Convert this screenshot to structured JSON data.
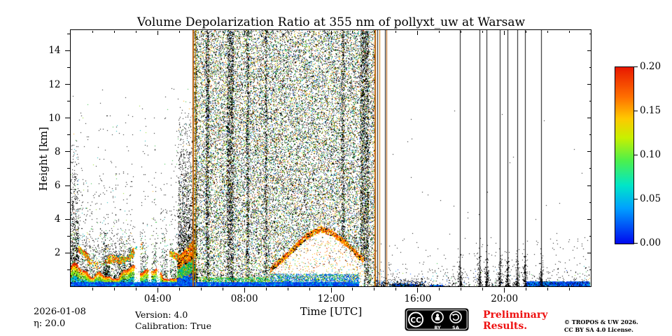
{
  "chart_data": {
    "type": "heatmap",
    "title": "Volume Depolarization Ratio at 355 nm of pollyxt_uw at Warsaw",
    "xlabel": "Time [UTC]",
    "ylabel": "Height [km]",
    "x_range_hours": [
      0,
      24
    ],
    "y_range_km": [
      0,
      15.2
    ],
    "x_ticks": [
      {
        "t": 4,
        "label": "04:00"
      },
      {
        "t": 8,
        "label": "08:00"
      },
      {
        "t": 12,
        "label": "12:00"
      },
      {
        "t": 16,
        "label": "16:00"
      },
      {
        "t": 20,
        "label": "20:00"
      }
    ],
    "x_minor_step_hours": 1,
    "y_ticks": [
      {
        "h": 2,
        "label": "2"
      },
      {
        "h": 4,
        "label": "4"
      },
      {
        "h": 6,
        "label": "6"
      },
      {
        "h": 8,
        "label": "8"
      },
      {
        "h": 10,
        "label": "10"
      },
      {
        "h": 12,
        "label": "12"
      },
      {
        "h": 14,
        "label": "14"
      }
    ],
    "y_minor_step_km": 1,
    "colorbar": {
      "min": 0.0,
      "max": 0.2,
      "label_values": [
        "0.20",
        "0.15",
        "0.10",
        "0.05",
        "0.00"
      ],
      "gradient_stops": [
        "#0008ee 0%",
        "#00a0ff 20%",
        "#00e6c8 33%",
        "#4cf04c 47%",
        "#c8f000 60%",
        "#ffc800 71%",
        "#ff7000 83%",
        "#e81800 100%"
      ]
    },
    "noise_seed": 1234567,
    "palettes": {
      "speckle": [
        [
          "#000000",
          0.5
        ],
        [
          "#1a9e1a",
          0.1
        ],
        [
          "#66cc22",
          0.07
        ],
        [
          "#00b0c0",
          0.09
        ],
        [
          "#ffaa00",
          0.08
        ],
        [
          "#ffe000",
          0.06
        ],
        [
          "#e03000",
          0.05
        ],
        [
          "#2255ee",
          0.05
        ]
      ],
      "warm": [
        [
          "#ff8800",
          0.3
        ],
        [
          "#dd3300",
          0.17
        ],
        [
          "#ffdd00",
          0.15
        ],
        [
          "#55cc33",
          0.13
        ],
        [
          "#00aacc",
          0.1
        ],
        [
          "#000000",
          0.15
        ]
      ],
      "rim": [
        [
          "#ff8800",
          0.4
        ],
        [
          "#ee3300",
          0.22
        ],
        [
          "#ffdd00",
          0.18
        ],
        [
          "#000000",
          0.2
        ]
      ],
      "blues": [
        [
          "#0033dd",
          0.45
        ],
        [
          "#0055ff",
          0.3
        ],
        [
          "#0090ee",
          0.15
        ],
        [
          "#00bbdd",
          0.1
        ]
      ],
      "greens": [
        [
          "#22bb33",
          0.4
        ],
        [
          "#00b0b0",
          0.3
        ],
        [
          "#88dd11",
          0.2
        ],
        [
          "#ffaa00",
          0.1
        ]
      ],
      "filament": [
        [
          "#ffaa00",
          0.28
        ],
        [
          "#ff6600",
          0.2
        ],
        [
          "#dd2200",
          0.13
        ],
        [
          "#ffee00",
          0.13
        ],
        [
          "#55cc22",
          0.14
        ],
        [
          "#00bbcc",
          0.12
        ]
      ]
    },
    "features": {
      "gaps": [
        [
          2.9,
          3.2
        ],
        [
          3.55,
          3.72
        ],
        [
          3.95,
          4.12
        ],
        [
          4.45,
          4.56
        ]
      ],
      "left_noise": {
        "t0": 0,
        "t1": 5.68,
        "count": 2600,
        "hscale": 3.0,
        "hmax": 11.8
      },
      "plumes": [
        {
          "t0": 0.0,
          "t1": 0.35,
          "hmax": 9.0,
          "count": 900
        },
        {
          "t0": 1.5,
          "t1": 1.78,
          "hmax": 3.4,
          "count": 380
        },
        {
          "t0": 2.2,
          "t1": 2.5,
          "hmax": 3.2,
          "count": 300
        },
        {
          "t0": 2.55,
          "t1": 2.85,
          "hmax": 2.6,
          "count": 240
        },
        {
          "t0": 4.95,
          "t1": 5.68,
          "hmax": 11.2,
          "count": 2400
        }
      ],
      "low_texture": {
        "t0": 0,
        "t1": 5.68,
        "h0": 0.25,
        "h1": 3.6,
        "count": 2400
      },
      "aerosol_layer": {
        "t0": 0,
        "t1": 5.68,
        "dots_per_col": 26,
        "dt": 0.018
      },
      "filaments": [
        {
          "t0": 0.35,
          "t1": 3.3
        },
        {
          "t0": 4.55,
          "t1": 5.68
        }
      ],
      "pre_dense": {
        "t0": 4.9,
        "t1": 5.68,
        "count": 1500
      },
      "dense_noise": {
        "t0": 5.68,
        "t1": 14.02,
        "count": 30000
      },
      "striations": [
        {
          "t": 5.76,
          "w": 0.12,
          "count": 700
        },
        {
          "t": 6.3,
          "w": 0.15,
          "count": 900
        },
        {
          "t": 7.35,
          "w": 0.3,
          "count": 1700
        },
        {
          "t": 8.15,
          "w": 0.12,
          "count": 650
        },
        {
          "t": 9.0,
          "w": 0.1,
          "count": 550
        },
        {
          "t": 12.55,
          "w": 0.15,
          "count": 750
        },
        {
          "t": 13.55,
          "w": 0.4,
          "count": 1900
        }
      ],
      "cloud": {
        "pts": [
          [
            9.2,
            1.2
          ],
          [
            10.0,
            2.1
          ],
          [
            10.8,
            3.1
          ],
          [
            11.5,
            3.6
          ],
          [
            12.1,
            3.3
          ],
          [
            12.7,
            2.7
          ],
          [
            13.5,
            1.7
          ]
        ],
        "interior_count": 800,
        "rim_count": 1300,
        "rim_depth": 0.32
      },
      "under_cloud": {
        "t0": 9.2,
        "t1": 13.3,
        "h1": 0.75,
        "count": 2200
      },
      "green_accent": {
        "t0": 5.9,
        "t1": 9.2,
        "h0": 0.26,
        "h1": 0.55,
        "count": 700
      },
      "blue_band": [
        {
          "t0": 0,
          "t1": 13.25,
          "h": 0.27,
          "count": 5200
        },
        {
          "t0": 14.85,
          "t1": 15.95,
          "h": 0.16,
          "count": 300
        },
        {
          "t0": 16.55,
          "t1": 17.15,
          "h": 0.1,
          "count": 90
        },
        {
          "t0": 21.0,
          "t1": 23.92,
          "h": 0.3,
          "count": 1500
        }
      ],
      "right_band": {
        "t0": 14.05,
        "t1": 16.35,
        "h1": 0.5,
        "count": 450
      },
      "right_scatter": {
        "t0": 14.05,
        "t1": 23.95,
        "count": 600,
        "hmax": 1.6,
        "count_high": 140,
        "hmax_high": 3.0,
        "count_ambient": 40,
        "hmax_ambient": 11
      },
      "vline_dots": {
        "count_per_line": 110,
        "hmax": 2.4
      },
      "vlines": [
        {
          "t": 5.62,
          "color": "#b85c00",
          "w": 2
        },
        {
          "t": 5.74,
          "color": "#d4a000",
          "w": 1
        },
        {
          "t": 14.02,
          "color": "#b85c00",
          "w": 2
        },
        {
          "t": 14.14,
          "color": "#111111",
          "w": 1
        },
        {
          "t": 14.26,
          "color": "#d07800",
          "w": 1
        },
        {
          "t": 14.5,
          "color": "#111111",
          "w": 1
        },
        {
          "t": 14.58,
          "color": "#b85c00",
          "w": 1
        },
        {
          "t": 17.95,
          "color": "#111111",
          "w": 1
        },
        {
          "t": 18.85,
          "color": "#111111",
          "w": 1
        },
        {
          "t": 19.2,
          "color": "#111111",
          "w": 1
        },
        {
          "t": 19.8,
          "color": "#111111",
          "w": 1
        },
        {
          "t": 20.15,
          "color": "#111111",
          "w": 1
        },
        {
          "t": 20.6,
          "color": "#111111",
          "w": 1
        },
        {
          "t": 20.95,
          "color": "#111111",
          "w": 1
        },
        {
          "t": 21.7,
          "color": "#111111",
          "w": 1
        }
      ]
    }
  },
  "footer": {
    "date": "2026-01-08",
    "eta": "η: 20.0",
    "version": "Version: 4.0",
    "calibration": "Calibration: True",
    "preliminary": "Preliminary Results.",
    "copyright_line1": "© TROPOS & UW 2026.",
    "copyright_line2": "CC BY SA 4.0 License.",
    "license_badge": {
      "cc": "CC",
      "by": "BY",
      "sa": "SA"
    }
  }
}
